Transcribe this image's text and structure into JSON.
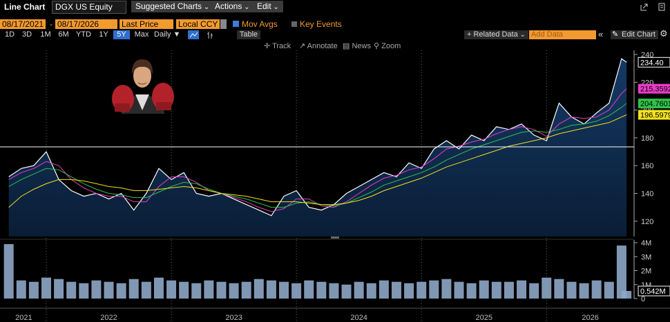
{
  "toolbar": {
    "title": "Line Chart",
    "security": "DGX US Equity",
    "menus": [
      "Suggested Charts",
      "Actions",
      "Edit"
    ],
    "start_date": "08/17/2021",
    "date_separator": "-",
    "end_date": "08/17/2026",
    "field": "Last Price",
    "currency": "Local CCY",
    "mov_avgs": "Mov Avgs",
    "key_events": "Key Events",
    "periods": [
      "1D",
      "3D",
      "1M",
      "6M",
      "YTD",
      "1Y",
      "5Y",
      "Max"
    ],
    "frequency": "Daily",
    "table": "Table",
    "related_data": "+ Related Data",
    "add_data": "Add Data",
    "collapse": "«",
    "edit_chart": "Edit Chart",
    "tools": [
      "Track",
      "Annotate",
      "News",
      "Zoom"
    ]
  },
  "chart_data": [
    {
      "type": "line",
      "xlim": [
        2021.63,
        2026.7
      ],
      "ylim": [
        109,
        242
      ],
      "yticks": [
        120,
        140,
        160,
        180,
        200,
        220,
        240
      ],
      "xgrid": [
        2022,
        2023,
        2024,
        2025,
        2026
      ],
      "hline": 173.5,
      "x": [
        2021.7,
        2021.8,
        2021.9,
        2022,
        2022.1,
        2022.2,
        2022.3,
        2022.4,
        2022.5,
        2022.6,
        2022.7,
        2022.8,
        2022.9,
        2023,
        2023.1,
        2023.2,
        2023.3,
        2023.4,
        2023.5,
        2023.6,
        2023.7,
        2023.8,
        2023.9,
        2024,
        2024.1,
        2024.2,
        2024.3,
        2024.4,
        2024.5,
        2024.6,
        2024.7,
        2024.8,
        2024.9,
        2025,
        2025.1,
        2025.2,
        2025.3,
        2025.4,
        2025.5,
        2025.6,
        2025.7,
        2025.8,
        2025.9,
        2026,
        2026.1,
        2026.2,
        2026.3,
        2026.4,
        2026.5,
        2026.6,
        2026.64
      ],
      "series": [
        {
          "color": "#ffffff",
          "area": true,
          "end_label": "234.40",
          "values": [
            152,
            158,
            160,
            170,
            150,
            142,
            138,
            140,
            136,
            140,
            128,
            140,
            158,
            150,
            155,
            140,
            138,
            140,
            136,
            132,
            128,
            124,
            138,
            142,
            130,
            128,
            132,
            140,
            145,
            150,
            155,
            152,
            162,
            158,
            172,
            178,
            172,
            182,
            178,
            188,
            186,
            190,
            182,
            178,
            205,
            195,
            190,
            198,
            205,
            237,
            234.4
          ]
        },
        {
          "color": "#e83cc8",
          "end_label": "215.3592",
          "values": [
            150,
            155,
            158,
            163,
            160,
            150,
            144,
            140,
            138,
            138,
            134,
            134,
            145,
            152,
            152,
            148,
            142,
            140,
            137,
            134,
            130,
            127,
            129,
            136,
            136,
            131,
            130,
            134,
            140,
            146,
            151,
            153,
            157,
            159,
            165,
            172,
            174,
            177,
            179,
            183,
            186,
            188,
            186,
            181,
            190,
            195,
            194,
            195,
            200,
            212,
            215.3592
          ]
        },
        {
          "color": "#2ec24a",
          "end_label": "204.7601",
          "values": [
            145,
            150,
            154,
            158,
            157,
            152,
            147,
            143,
            140,
            139,
            137,
            137,
            141,
            145,
            148,
            147,
            143,
            140,
            138,
            136,
            133,
            130,
            130,
            133,
            134,
            132,
            131,
            133,
            137,
            141,
            146,
            149,
            152,
            155,
            159,
            164,
            168,
            172,
            175,
            178,
            181,
            184,
            185,
            184,
            186,
            189,
            190,
            192,
            196,
            202,
            204.7601
          ]
        },
        {
          "color": "#f2e21c",
          "end_label": "196.5979",
          "values": [
            130,
            138,
            143,
            147,
            150,
            150,
            149,
            147,
            145,
            144,
            142,
            142,
            143,
            144,
            145,
            144,
            142,
            140,
            139,
            138,
            136,
            134,
            134,
            134,
            133,
            132,
            132,
            133,
            135,
            138,
            142,
            145,
            148,
            151,
            155,
            159,
            162,
            165,
            168,
            171,
            174,
            176,
            178,
            180,
            183,
            185,
            187,
            189,
            191,
            195,
            196.5979
          ]
        }
      ]
    },
    {
      "type": "bar",
      "xlim": [
        2021.63,
        2026.7
      ],
      "ylim": [
        0,
        4.1
      ],
      "yticks": [
        0,
        {
          "value": 1,
          "label": "1M"
        },
        {
          "value": 2,
          "label": "2M"
        },
        {
          "value": 3,
          "label": "3M"
        },
        {
          "value": 4,
          "label": "4M"
        }
      ],
      "xgrid": [
        2022,
        2023,
        2024,
        2025,
        2026
      ],
      "xticks": [
        {
          "value": 2021.82,
          "label": "2021"
        },
        {
          "value": 2022.5,
          "label": "2022"
        },
        {
          "value": 2023.5,
          "label": "2023"
        },
        {
          "value": 2024.5,
          "label": "2024"
        },
        {
          "value": 2025.5,
          "label": "2025"
        },
        {
          "value": 2026.35,
          "label": "2026"
        }
      ],
      "x": [
        2021.7,
        2021.8,
        2021.9,
        2022,
        2022.1,
        2022.2,
        2022.3,
        2022.4,
        2022.5,
        2022.6,
        2022.7,
        2022.8,
        2022.9,
        2023,
        2023.1,
        2023.2,
        2023.3,
        2023.4,
        2023.5,
        2023.6,
        2023.7,
        2023.8,
        2023.9,
        2024,
        2024.1,
        2024.2,
        2024.3,
        2024.4,
        2024.5,
        2024.6,
        2024.7,
        2024.8,
        2024.9,
        2025,
        2025.1,
        2025.2,
        2025.3,
        2025.4,
        2025.5,
        2025.6,
        2025.7,
        2025.8,
        2025.9,
        2026,
        2026.1,
        2026.2,
        2026.3,
        2026.4,
        2026.5,
        2026.6,
        2026.64
      ],
      "series": [
        {
          "color": "#8ea7c8",
          "end_label": "0.542M",
          "values": [
            3.9,
            1.3,
            1.2,
            1.5,
            1.4,
            1.2,
            1.1,
            1.3,
            1.2,
            1.1,
            1.4,
            1.2,
            1.5,
            1.3,
            1.2,
            1.1,
            1.3,
            1.2,
            1.1,
            1.2,
            1.4,
            1.3,
            1.2,
            1.1,
            1.3,
            1.2,
            1.1,
            1.0,
            1.2,
            1.1,
            1.3,
            1.2,
            1.1,
            1.2,
            1.3,
            1.4,
            1.2,
            1.1,
            1.3,
            1.2,
            1.2,
            1.3,
            1.1,
            1.5,
            1.4,
            1.2,
            1.1,
            1.3,
            1.2,
            3.8,
            0.542
          ]
        }
      ]
    }
  ]
}
